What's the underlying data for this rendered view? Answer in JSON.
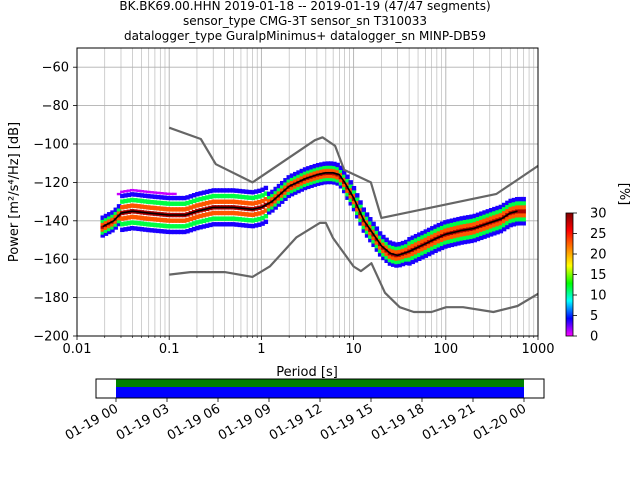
{
  "title": {
    "line1": "BK.BK69.00.HHN   2019-01-18 -- 2019-01-19  (47/47 segments)",
    "line2": "sensor_type CMG-3T sensor_sn T310033",
    "line3": "datalogger_type GuralpMinimus+ datalogger_sn MINP-DB59"
  },
  "colors": {
    "median": "#000000",
    "noise_model": "#666666",
    "timeline_top": "#008000",
    "timeline_bottom": "#0000ff",
    "grid": "#b0b0b0"
  },
  "chart_data": [
    {
      "type": "heatmap",
      "xscale": "log",
      "xlabel": "Period [s]",
      "ylabel": "Power [m²/s⁴/Hz] [dB]",
      "xlim": [
        0.01,
        1000
      ],
      "ylim": [
        -200,
        -50
      ],
      "grid": true,
      "x_ticks": [
        {
          "value": 0.01,
          "label": "0.01"
        },
        {
          "value": 0.1,
          "label": "0.1"
        },
        {
          "value": 1,
          "label": "1"
        },
        {
          "value": 10,
          "label": "10"
        },
        {
          "value": 100,
          "label": "100"
        },
        {
          "value": 1000,
          "label": "1000"
        }
      ],
      "y_ticks": [
        {
          "value": -60,
          "label": "−60"
        },
        {
          "value": -80,
          "label": "−80"
        },
        {
          "value": -100,
          "label": "−100"
        },
        {
          "value": -120,
          "label": "−120"
        },
        {
          "value": -140,
          "label": "−140"
        },
        {
          "value": -160,
          "label": "−160"
        },
        {
          "value": -180,
          "label": "−180"
        },
        {
          "value": -200,
          "label": "−200"
        }
      ],
      "series": [
        {
          "role": "median",
          "x": [
            0.019,
            0.025,
            0.03,
            0.04,
            0.06,
            0.1,
            0.15,
            0.2,
            0.3,
            0.5,
            0.8,
            1.0,
            1.3,
            2,
            3,
            4,
            5,
            6,
            7,
            8,
            10,
            13,
            17,
            20,
            25,
            30,
            40,
            60,
            80,
            100,
            150,
            200,
            300,
            400,
            500,
            600
          ],
          "y": [
            -143,
            -140,
            -136,
            -135,
            -136,
            -137,
            -137,
            -135,
            -133,
            -133,
            -134,
            -133,
            -130,
            -122,
            -118,
            -116,
            -115,
            -115,
            -116,
            -120,
            -128,
            -140,
            -148,
            -153,
            -157,
            -158,
            -156,
            -152,
            -149,
            -147,
            -145,
            -144,
            -141,
            -139,
            -136,
            -135
          ]
        },
        {
          "role": "noise_model_high",
          "x": [
            0.1,
            0.22,
            0.32,
            0.8,
            3.8,
            4.6,
            6.3,
            7.9,
            15.4,
            20,
            354.8,
            1000
          ],
          "y": [
            -91.5,
            -97.4,
            -110.5,
            -120,
            -98,
            -96.5,
            -101,
            -113.5,
            -120,
            -138.5,
            -126,
            -111.4
          ]
        },
        {
          "role": "noise_model_low",
          "x": [
            0.1,
            0.17,
            0.4,
            0.8,
            1.24,
            2.4,
            4.3,
            5.0,
            6.0,
            10.0,
            12.0,
            15.6,
            21.9,
            31.6,
            45,
            70,
            101,
            154,
            328,
            600,
            1000
          ],
          "y": [
            -168,
            -166.7,
            -166.7,
            -169.2,
            -163.7,
            -148.6,
            -141.1,
            -141.1,
            -149,
            -163.8,
            -166.2,
            -162.1,
            -177.5,
            -185,
            -187.5,
            -187.5,
            -185,
            -185,
            -187.5,
            -184.4,
            -178
          ]
        }
      ]
    },
    {
      "type": "colorbar",
      "label": "[%]",
      "range": [
        0,
        30
      ],
      "ticks": [
        {
          "value": 0,
          "label": "0"
        },
        {
          "value": 5,
          "label": "5"
        },
        {
          "value": 10,
          "label": "10"
        },
        {
          "value": 15,
          "label": "15"
        },
        {
          "value": 20,
          "label": "20"
        },
        {
          "value": 25,
          "label": "25"
        },
        {
          "value": 30,
          "label": "30"
        }
      ],
      "colormap": [
        "#ff00ff",
        "#0000ff",
        "#00ffff",
        "#00ff00",
        "#ffff00",
        "#ff8000",
        "#ff0000",
        "#800000"
      ]
    },
    {
      "type": "timeline",
      "xlim": [
        "2019-01-18 22:30",
        "2019-01-20 01:30"
      ],
      "data_range": [
        "2019-01-19 00:00",
        "2019-01-20 00:00"
      ],
      "x_ticks": [
        "01-19 00",
        "01-19 03",
        "01-19 06",
        "01-19 09",
        "01-19 12",
        "01-19 15",
        "01-19 18",
        "01-19 21",
        "01-20 00"
      ]
    }
  ]
}
